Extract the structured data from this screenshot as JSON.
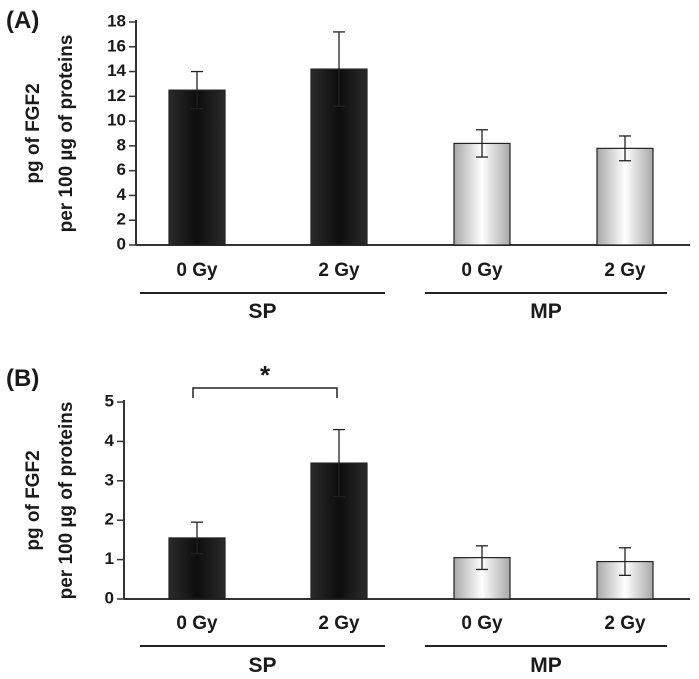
{
  "chart_data": [
    {
      "type": "bar",
      "panel_label": "(A)",
      "categories": [
        "0 Gy",
        "2 Gy",
        "0 Gy",
        "2 Gy"
      ],
      "groups": [
        {
          "label": "SP",
          "category_indices": [
            0,
            1
          ],
          "fill": "dark"
        },
        {
          "label": "MP",
          "category_indices": [
            2,
            3
          ],
          "fill": "light"
        }
      ],
      "values": [
        12.5,
        14.2,
        8.2,
        7.8
      ],
      "errors": [
        1.5,
        3.0,
        1.1,
        1.0
      ],
      "ylabel_lines": [
        "pg of FGF2",
        "per 100 µg of proteins"
      ],
      "ylim": [
        0,
        18
      ],
      "yticks": [
        0,
        2,
        4,
        6,
        8,
        10,
        12,
        14,
        16,
        18
      ],
      "annotations": []
    },
    {
      "type": "bar",
      "panel_label": "(B)",
      "categories": [
        "0 Gy",
        "2 Gy",
        "0 Gy",
        "2 Gy"
      ],
      "groups": [
        {
          "label": "SP",
          "category_indices": [
            0,
            1
          ],
          "fill": "dark"
        },
        {
          "label": "MP",
          "category_indices": [
            2,
            3
          ],
          "fill": "light"
        }
      ],
      "values": [
        1.55,
        3.45,
        1.05,
        0.95
      ],
      "errors": [
        0.4,
        0.85,
        0.3,
        0.35
      ],
      "ylabel_lines": [
        "pg of FGF2",
        "per 100 µg of proteins"
      ],
      "ylim": [
        0,
        5
      ],
      "yticks": [
        0,
        1,
        2,
        3,
        4,
        5
      ],
      "annotations": [
        {
          "text": "*",
          "between": [
            0,
            1
          ]
        }
      ]
    }
  ],
  "colors": {
    "dark_edge": "#2b2b2b",
    "dark_center": "#0d0d0d",
    "light_edge": "#a8a8a8",
    "light_center": "#ffffff",
    "axis": "#333333"
  }
}
